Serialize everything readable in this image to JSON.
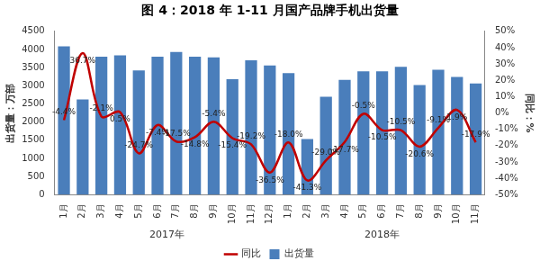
{
  "chart_data": {
    "type": "bar",
    "title": "图 4：2018 年 1-11 月国产品牌手机出货量",
    "categories": [
      "1月",
      "2月",
      "3月",
      "4月",
      "5月",
      "6月",
      "7月",
      "8月",
      "9月",
      "10月",
      "11月",
      "12月",
      "1月",
      "2月",
      "3月",
      "4月",
      "5月",
      "6月",
      "7月",
      "8月",
      "9月",
      "10月",
      "11月"
    ],
    "x_groups": [
      {
        "label": "2017年",
        "size": 12
      },
      {
        "label": "2018年",
        "size": 11
      }
    ],
    "y_label": "出货量：万部",
    "y2_label": "同比：%",
    "ylim": [
      0,
      4500
    ],
    "yticks": [
      0,
      500,
      1000,
      1500,
      2000,
      2500,
      3000,
      3500,
      4000,
      4500
    ],
    "y2lim": [
      -50,
      50
    ],
    "y2ticks": [
      {
        "value": -50,
        "label": "-50%"
      },
      {
        "value": -40,
        "label": "-40%"
      },
      {
        "value": -30,
        "label": "-30%"
      },
      {
        "value": -20,
        "label": "-20%"
      },
      {
        "value": -10,
        "label": "-10%"
      },
      {
        "value": 0,
        "label": "0%"
      },
      {
        "value": 10,
        "label": "10%"
      },
      {
        "value": 20,
        "label": "20%"
      },
      {
        "value": 30,
        "label": "30%"
      },
      {
        "value": 40,
        "label": "40%"
      },
      {
        "value": 50,
        "label": "50%"
      }
    ],
    "grid": false,
    "legend": "bottom",
    "series": [
      {
        "name": "出货量",
        "type": "bar",
        "color": "#4a7ebb",
        "values": [
          4087,
          2620,
          3800,
          3840,
          3420,
          3800,
          3930,
          3800,
          3780,
          3180,
          3700,
          3560,
          3350,
          1530,
          2700,
          3160,
          3400,
          3400,
          3520,
          3020,
          3440,
          3240,
          3060
        ]
      },
      {
        "name": "同比",
        "type": "line",
        "axis": "y2",
        "color": "#c00000",
        "data_labels": true,
        "values": [
          -4.4,
          36.7,
          -2.1,
          0.5,
          -24.7,
          -7.4,
          -17.5,
          -14.8,
          -5.4,
          -15.4,
          -19.2,
          -36.5,
          -18.0,
          -41.3,
          -29.0,
          -17.7,
          -0.5,
          -10.5,
          -10.5,
          -20.6,
          -9.1,
          1.9,
          -17.9
        ],
        "value_labels": [
          "-4.4%",
          "36.7%",
          "-2.1%",
          "0.5%",
          "-24.7%",
          "-7.4%",
          "-17.5%",
          "-14.8%",
          "-5.4%",
          "-15.4%",
          "-19.2%",
          "-36.5%",
          "-18.0%",
          "-41.3%",
          "-29.0%",
          "-17.7%",
          "-0.5%",
          "-10.5%",
          "-10.5%",
          "-20.6%",
          "-9.1%",
          "1.9%",
          "-17.9%"
        ]
      }
    ]
  }
}
